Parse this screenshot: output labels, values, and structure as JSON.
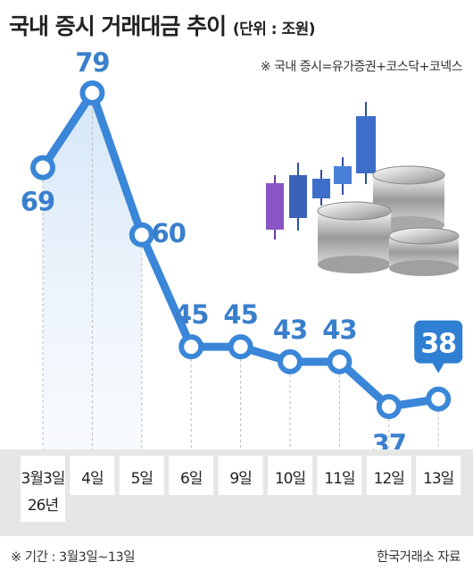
{
  "title": "국내 증시 거래대금 추이",
  "unit": "(단위 : 조원)",
  "note": "※ 국내 증시=유가증권+코스닥+코넥스",
  "footer": {
    "period": "※ 기간 : 3월3일~13일",
    "source": "한국거래소 자료"
  },
  "colors": {
    "line": "#3a86d8",
    "label": "#3a7fcc",
    "axis_band": "#e6e6e6",
    "callout": "#2f7fd3"
  },
  "chart_data": {
    "type": "line",
    "title": "국내 증시 거래대금 추이",
    "categories": [
      "3월3일\n26년",
      "4일",
      "5일",
      "6일",
      "9일",
      "10일",
      "11일",
      "12일",
      "13일"
    ],
    "values": [
      69,
      79,
      60,
      45,
      45,
      43,
      43,
      37,
      38
    ],
    "unit": "조원",
    "highlight_index": 8,
    "grid": false,
    "area_fill_first_segment": true
  }
}
